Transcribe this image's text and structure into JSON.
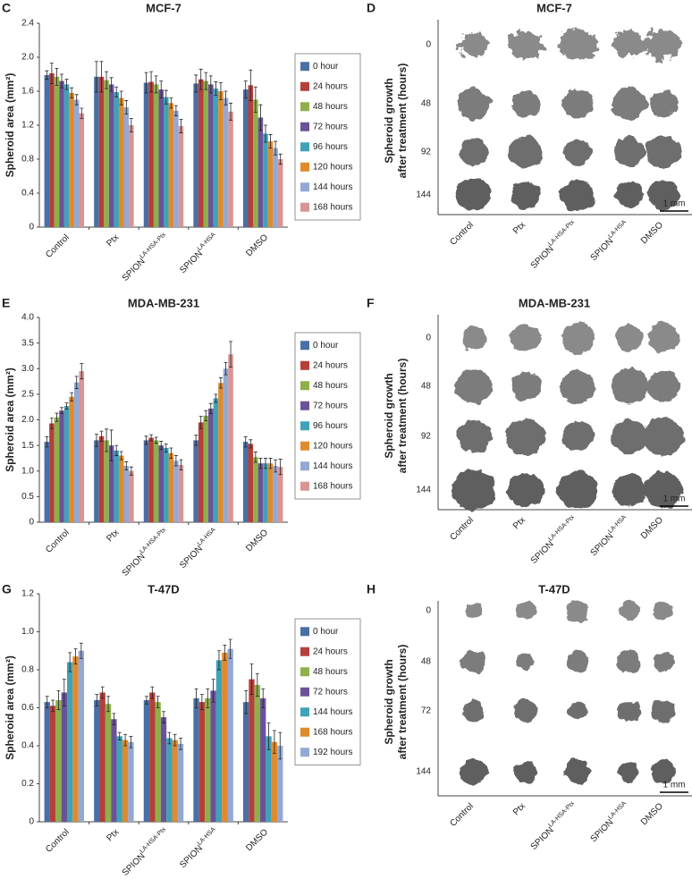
{
  "chart_data": [
    {
      "type": "bar",
      "panel_label": "C",
      "title": "MCF-7",
      "y_label": "Spheroid area (mm²)",
      "categories": [
        "Control",
        "Ptx",
        {
          "text": "SPION",
          "sup": "LA-HSA-Ptx"
        },
        {
          "text": "SPION",
          "sup": "LA-HSA"
        },
        "DMSO"
      ],
      "ylim": [
        0,
        2.4
      ],
      "yticks": [
        0,
        0.4,
        0.8,
        1.2,
        1.6,
        {
          "value": 2,
          "label": "2.0"
        },
        2.4
      ],
      "series": [
        {
          "name": "0 hour",
          "color": "#4a6fa5",
          "values": [
            1.79,
            1.77,
            1.7,
            1.69,
            1.62
          ],
          "errors": [
            0.05,
            0.18,
            0.12,
            0.1,
            0.1
          ]
        },
        {
          "name": "24 hours",
          "color": "#b5403a",
          "values": [
            1.81,
            1.77,
            1.71,
            1.74,
            1.67
          ],
          "errors": [
            0.12,
            0.18,
            0.12,
            0.12,
            0.18
          ]
        },
        {
          "name": "48 hours",
          "color": "#8db04a",
          "values": [
            1.77,
            1.73,
            1.68,
            1.72,
            1.5
          ],
          "errors": [
            0.1,
            0.1,
            0.1,
            0.1,
            0.15
          ]
        },
        {
          "name": "72 hours",
          "color": "#6b5298",
          "values": [
            1.72,
            1.68,
            1.62,
            1.68,
            1.29
          ],
          "errors": [
            0.08,
            0.08,
            0.1,
            0.1,
            0.15
          ]
        },
        {
          "name": "96 hours",
          "color": "#3fa3b8",
          "values": [
            1.68,
            1.59,
            1.53,
            1.63,
            1.1
          ],
          "errors": [
            0.06,
            0.06,
            0.08,
            0.08,
            0.1
          ]
        },
        {
          "name": "120 hours",
          "color": "#e08a2e",
          "values": [
            1.58,
            1.52,
            1.46,
            1.6,
            1.01
          ],
          "errors": [
            0.06,
            0.08,
            0.06,
            0.1,
            0.08
          ]
        },
        {
          "name": "144 hours",
          "color": "#93a9d4",
          "values": [
            1.5,
            1.41,
            1.37,
            1.52,
            0.93
          ],
          "errors": [
            0.06,
            0.08,
            0.06,
            0.08,
            0.08
          ]
        },
        {
          "name": "168 hours",
          "color": "#d99494",
          "values": [
            1.34,
            1.2,
            1.19,
            1.36,
            0.8
          ],
          "errors": [
            0.06,
            0.08,
            0.08,
            0.1,
            0.06
          ]
        }
      ]
    },
    {
      "type": "bar",
      "panel_label": "E",
      "title": "MDA-MB-231",
      "y_label": "Spheroid area (mm²)",
      "categories": [
        "Control",
        "Ptx",
        {
          "text": "SPION",
          "sup": "LA-HSA-Ptx"
        },
        {
          "text": "SPION",
          "sup": "LA-HSA"
        },
        "DMSO"
      ],
      "ylim": [
        0,
        4
      ],
      "yticks": [
        0,
        0.5,
        {
          "value": 1,
          "label": "1.0"
        },
        1.5,
        {
          "value": 2,
          "label": "2.0"
        },
        2.5,
        {
          "value": 3,
          "label": "3.0"
        },
        3.5,
        {
          "value": 4,
          "label": "4.0"
        }
      ],
      "series": [
        {
          "name": "0 hour",
          "color": "#4a6fa5",
          "values": [
            1.57,
            1.6,
            1.6,
            1.6,
            1.57
          ],
          "errors": [
            0.1,
            0.12,
            0.08,
            0.1,
            0.1
          ]
        },
        {
          "name": "24 hours",
          "color": "#b5403a",
          "values": [
            1.93,
            1.68,
            1.65,
            1.95,
            1.53
          ],
          "errors": [
            0.1,
            0.1,
            0.06,
            0.12,
            0.08
          ]
        },
        {
          "name": "48 hours",
          "color": "#8db04a",
          "values": [
            2.05,
            1.6,
            1.6,
            2.08,
            1.27
          ],
          "errors": [
            0.08,
            0.22,
            0.06,
            0.1,
            0.1
          ]
        },
        {
          "name": "72 hours",
          "color": "#6b5298",
          "values": [
            2.18,
            1.5,
            1.5,
            2.22,
            1.15
          ],
          "errors": [
            0.06,
            0.3,
            0.08,
            0.1,
            0.1
          ]
        },
        {
          "name": "96 hours",
          "color": "#3fa3b8",
          "values": [
            2.27,
            1.4,
            1.45,
            2.42,
            1.15
          ],
          "errors": [
            0.06,
            0.1,
            0.08,
            0.08,
            0.1
          ]
        },
        {
          "name": "120 hours",
          "color": "#e08a2e",
          "values": [
            2.45,
            1.3,
            1.35,
            2.72,
            1.15
          ],
          "errors": [
            0.08,
            0.08,
            0.1,
            0.1,
            0.1
          ]
        },
        {
          "name": "144 hours",
          "color": "#93a9d4",
          "values": [
            2.73,
            1.1,
            1.2,
            3.0,
            1.1
          ],
          "errors": [
            0.12,
            0.08,
            0.1,
            0.12,
            0.12
          ]
        },
        {
          "name": "168 hours",
          "color": "#d99494",
          "values": [
            2.95,
            1.0,
            1.12,
            3.28,
            1.08
          ],
          "errors": [
            0.15,
            0.08,
            0.1,
            0.25,
            0.15
          ]
        }
      ]
    },
    {
      "type": "bar",
      "panel_label": "G",
      "title": "T-47D",
      "y_label": "Spheroid area (mm²)",
      "categories": [
        "Control",
        "Ptx",
        {
          "text": "SPION",
          "sup": "LA-HSA-Ptx"
        },
        {
          "text": "SPION",
          "sup": "LA-HSA"
        },
        "DMSO"
      ],
      "ylim": [
        0,
        1.2
      ],
      "yticks": [
        0,
        0.2,
        0.4,
        0.6,
        0.8,
        {
          "value": 1,
          "label": "1.0"
        },
        1.2
      ],
      "series": [
        {
          "name": "0 hour",
          "color": "#4a6fa5",
          "values": [
            0.63,
            0.64,
            0.64,
            0.65,
            0.63
          ],
          "errors": [
            0.03,
            0.03,
            0.02,
            0.05,
            0.06
          ]
        },
        {
          "name": "24 hours",
          "color": "#b5403a",
          "values": [
            0.61,
            0.68,
            0.68,
            0.63,
            0.75
          ],
          "errors": [
            0.03,
            0.03,
            0.03,
            0.04,
            0.08
          ]
        },
        {
          "name": "48 hours",
          "color": "#8db04a",
          "values": [
            0.64,
            0.62,
            0.63,
            0.65,
            0.72
          ],
          "errors": [
            0.05,
            0.04,
            0.03,
            0.05,
            0.06
          ]
        },
        {
          "name": "72 hours",
          "color": "#6b5298",
          "values": [
            0.68,
            0.54,
            0.55,
            0.69,
            0.65
          ],
          "errors": [
            0.07,
            0.03,
            0.03,
            0.06,
            0.05
          ]
        },
        {
          "name": "144 hours",
          "color": "#3fa3b8",
          "values": [
            0.84,
            0.45,
            0.44,
            0.85,
            0.45
          ],
          "errors": [
            0.05,
            0.02,
            0.03,
            0.05,
            0.07
          ]
        },
        {
          "name": "168 hours",
          "color": "#e08a2e",
          "values": [
            0.87,
            0.43,
            0.43,
            0.89,
            0.42
          ],
          "errors": [
            0.04,
            0.03,
            0.03,
            0.04,
            0.06
          ]
        },
        {
          "name": "192 hours",
          "color": "#93a9d4",
          "values": [
            0.9,
            0.42,
            0.41,
            0.91,
            0.4
          ],
          "errors": [
            0.04,
            0.03,
            0.03,
            0.05,
            0.07
          ]
        }
      ]
    }
  ],
  "image_panels": [
    {
      "panel_label": "D",
      "title": "MCF-7",
      "y_label": [
        "Spheroid growth",
        "after treatment (hours)"
      ],
      "row_labels": [
        "0",
        "48",
        "92",
        "144"
      ],
      "columns": [
        "Control",
        "Ptx",
        {
          "text": "SPION",
          "sup": "LA-HSA-Ptx"
        },
        {
          "text": "SPION",
          "sup": "LA-HSA"
        },
        "DMSO"
      ],
      "scale_bar": "1 mm"
    },
    {
      "panel_label": "F",
      "title": "MDA-MB-231",
      "y_label": [
        "Spheroid growth",
        "after treatment (hours)"
      ],
      "row_labels": [
        "0",
        "48",
        "92",
        "144"
      ],
      "columns": [
        "Control",
        "Ptx",
        {
          "text": "SPION",
          "sup": "LA-HSA-Ptx"
        },
        {
          "text": "SPION",
          "sup": "LA-HSA"
        },
        "DMSO"
      ],
      "scale_bar": "1 mm"
    },
    {
      "panel_label": "H",
      "title": "T-47D",
      "y_label": [
        "Spheroid growth",
        "after treatment (hours)"
      ],
      "row_labels": [
        "0",
        "48",
        "72",
        "144"
      ],
      "columns": [
        "Control",
        "Ptx",
        {
          "text": "SPION",
          "sup": "LA-HSA-Ptx"
        },
        {
          "text": "SPION",
          "sup": "LA-HSA"
        },
        "DMSO"
      ],
      "scale_bar": "1 mm"
    }
  ]
}
